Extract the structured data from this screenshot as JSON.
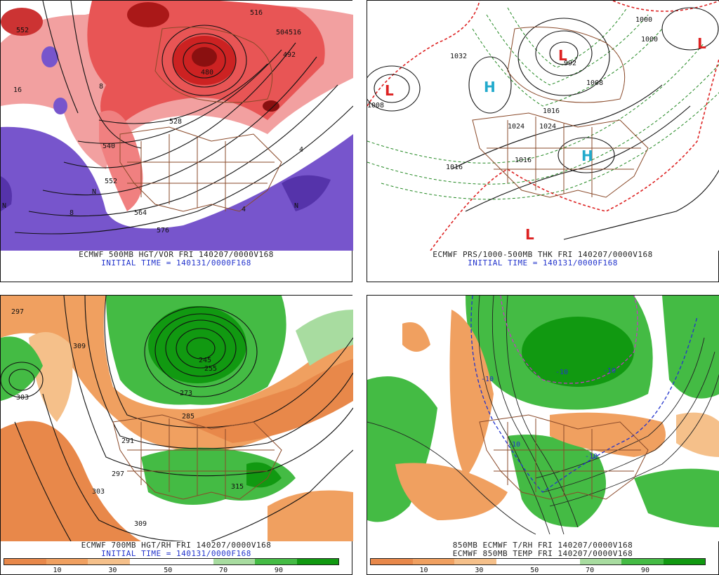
{
  "panels": [
    {
      "id": "p1",
      "caption1": "ECMWF 500MB HGT/VOR FRI 140207/0000V168",
      "caption2": "INITIAL TIME = 140131/0000F168",
      "contour_labels": [
        "552",
        "504",
        "516",
        "492",
        "480",
        "528",
        "540",
        "552",
        "564",
        "576",
        "516",
        "8",
        "8",
        "4",
        "4",
        "N",
        "N",
        "N",
        "16"
      ]
    },
    {
      "id": "p2",
      "caption1": "ECMWF PRS/1000-500MB THK FRI 140207/0000V168",
      "caption2": "INITIAL TIME = 140131/0000F168",
      "contour_labels": [
        "1008",
        "1032",
        "992",
        "1000",
        "1008",
        "1016",
        "1024",
        "1024",
        "1016",
        "1016",
        "1000"
      ],
      "pressure_centers": [
        {
          "type": "L",
          "color": "#dd2222"
        },
        {
          "type": "H",
          "color": "#22aacc"
        },
        {
          "type": "L",
          "color": "#dd2222"
        },
        {
          "type": "L",
          "color": "#dd2222"
        },
        {
          "type": "H",
          "color": "#22aacc"
        },
        {
          "type": "L",
          "color": "#dd2222"
        }
      ]
    },
    {
      "id": "p3",
      "caption1": "ECMWF 700MB HGT/RH FRI 140207/0000V168",
      "caption2": "INITIAL TIME = 140131/0000F168",
      "contour_labels": [
        "297",
        "309",
        "303",
        "245",
        "255",
        "273",
        "285",
        "291",
        "297",
        "303",
        "309",
        "315"
      ]
    },
    {
      "id": "p4",
      "caption1": "850MB ECMWF T/RH FRI 140207/0000V168",
      "caption2": "ECMWF 850MB TEMP FRI 140207/0000V168",
      "contour_labels": [
        "-10",
        "-10",
        "-10",
        "-10",
        "-10"
      ]
    }
  ],
  "colorbar": {
    "colors": [
      "#e8884a",
      "#f0a060",
      "#f5c08a",
      "#ffffff",
      "#ffffff",
      "#a8dca0",
      "#44bb44",
      "#119911"
    ],
    "ticks": [
      "10",
      "30",
      "50",
      "70",
      "90"
    ]
  },
  "colors": {
    "vorticity": "#dd3333",
    "vorticity_dark": "#8a1010",
    "negative_vort": "#7755cc",
    "dry": "#f0a060",
    "moist": "#33aa33",
    "land": "#8a4a2a"
  }
}
